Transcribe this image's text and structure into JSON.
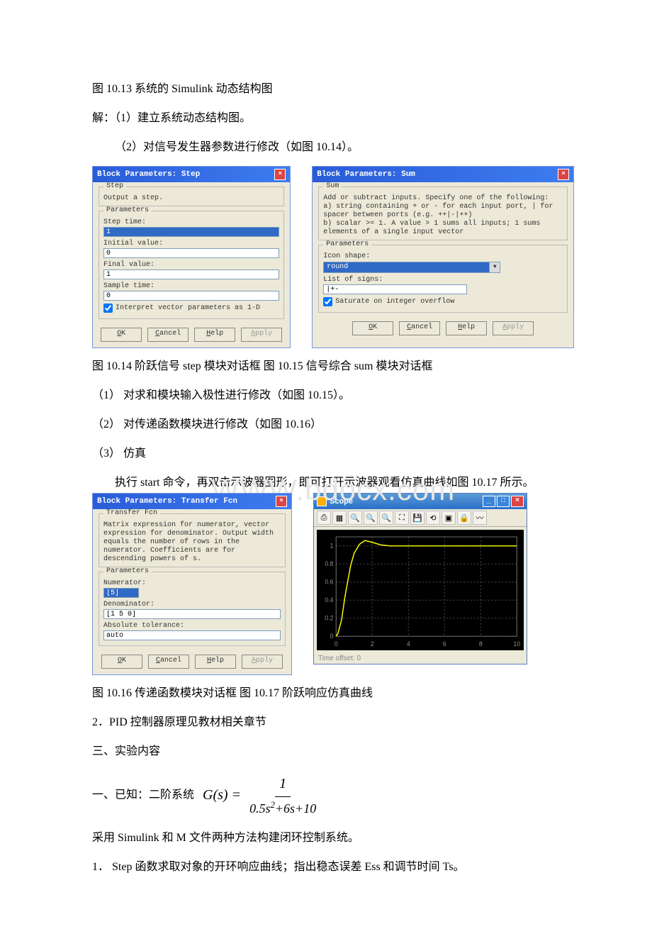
{
  "text": {
    "p1": "图 10.13 系统的 Simulink 动态结构图",
    "p2": "解：（1）建立系统动态结构图。",
    "p3": "（2）对信号发生器参数进行修改（如图 10.14）。",
    "caption1": "图 10.14 阶跃信号 step 模块对话框    图 10.15 信号综合 sum 模块对话框",
    "li1": "（1） 对求和模块输入极性进行修改（如图 10.15）。",
    "li2": "（2） 对传递函数模块进行修改（如图 10.16）",
    "li3": "（3） 仿真",
    "p4": "执行 start 命令，再双击示波器图形，即可打开示波器观看仿真曲线如图 10.17 所示。",
    "caption2": "图 10.16 传递函数模块对话框     图 10.17 阶跃响应仿真曲线",
    "p5": "2．PID 控制器原理见教材相关章节",
    "p6": "三、实验内容",
    "p7_prefix": "一、已知：二阶系统",
    "p8": "采用 Simulink 和 M 文件两种方法构建闭环控制系统。",
    "p9": "1． Step 函数求取对象的开环响应曲线；指出稳态误差 Ess 和调节时间 Ts。",
    "watermark": "WWW.bdocx.com"
  },
  "stepDialog": {
    "title": "Block Parameters: Step",
    "group1": "Step",
    "desc": "Output a step.",
    "group2": "Parameters",
    "stepTimeLabel": "Step time:",
    "stepTime": "1",
    "initLabel": "Initial value:",
    "init": "0",
    "finalLabel": "Final value:",
    "final": "1",
    "sampleLabel": "Sample time:",
    "sample": "0",
    "chk": "Interpret vector parameters as 1-D",
    "ok": "OK",
    "cancel": "Cancel",
    "help": "Help",
    "apply": "Apply"
  },
  "sumDialog": {
    "title": "Block Parameters: Sum",
    "group1": "Sum",
    "desc": "Add or subtract inputs.  Specify one of the following:\na) string containing + or - for each input port, | for spacer between ports (e.g. ++|-|++)\nb) scalar >= 1. A value > 1 sums all inputs; 1 sums elements of a single input vector",
    "group2": "Parameters",
    "iconShapeLabel": "Icon shape:",
    "iconShape": "round",
    "listSignsLabel": "List of signs:",
    "listSigns": "|+-",
    "chk": "Saturate on integer overflow",
    "ok": "OK",
    "cancel": "Cancel",
    "help": "Help",
    "apply": "Apply"
  },
  "tfDialog": {
    "title": "Block Parameters: Transfer Fcn",
    "group1": "Transfer Fcn",
    "desc": "Matrix expression for numerator, vector expression for denominator.  Output width equals the number of rows in the numerator.  Coefficients are for descending powers of s.",
    "group2": "Parameters",
    "numLabel": "Numerator:",
    "num": "[5]",
    "denLabel": "Denominator:",
    "den": "[1 5 0]",
    "absTolLabel": "Absolute tolerance:",
    "absTol": "auto",
    "ok": "OK",
    "cancel": "Cancel",
    "help": "Help",
    "apply": "Apply"
  },
  "scope": {
    "title": "Scope",
    "timeOffset": "Time offset:  0",
    "plot": {
      "xlim": [
        0,
        10
      ],
      "ylim": [
        0,
        1.1
      ],
      "xticks": [
        0,
        2,
        4,
        6,
        8,
        10
      ],
      "yticks": [
        0,
        0.2,
        0.4,
        0.6,
        0.8,
        1
      ],
      "line_color": "#ffff00",
      "grid_color": "#505050",
      "tick_color": "#909090",
      "bg": "#000000",
      "series_x": [
        0,
        0.1,
        0.3,
        0.5,
        0.8,
        1.0,
        1.3,
        1.6,
        2.0,
        2.5,
        3.0,
        4.0,
        5.0,
        6.0,
        8.0,
        10.0
      ],
      "series_y": [
        0,
        0.03,
        0.18,
        0.45,
        0.78,
        0.92,
        1.02,
        1.06,
        1.04,
        1.01,
        1.0,
        1.0,
        1.0,
        1.0,
        1.0,
        1.0
      ]
    }
  },
  "formula": {
    "lhs": "G(s) =",
    "num": "1",
    "den": "0.5s² + 6s + 10"
  },
  "colors": {
    "dialog_bg": "#ece9d8",
    "title_grad_a": "#2a5cd8",
    "title_grad_b": "#3d7cf0",
    "input_border": "#7f9db9",
    "selection_bg": "#316ac5"
  }
}
